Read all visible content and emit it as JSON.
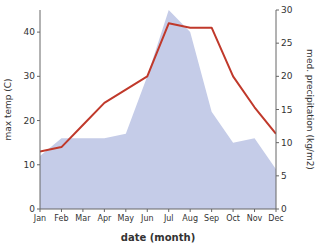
{
  "chart_data": {
    "type": "line",
    "categories": [
      "Jan",
      "Feb",
      "Mar",
      "Apr",
      "May",
      "Jun",
      "Jul",
      "Aug",
      "Sep",
      "Oct",
      "Nov",
      "Dec"
    ],
    "series": [
      {
        "type": "area",
        "color": "#c5cce8",
        "values": [
          12,
          16,
          16,
          16,
          17,
          30,
          45,
          40,
          22,
          15,
          16,
          9
        ]
      },
      {
        "type": "line",
        "color": "#c0392b",
        "values": [
          13,
          14,
          19,
          24,
          27,
          30,
          42,
          41,
          41,
          30,
          23,
          17
        ]
      }
    ],
    "xlabel": "date (month)",
    "ylabel": "max temp (C)",
    "y2label": "med. precipitation (kg/m2)",
    "ylim": [
      0,
      45
    ],
    "yticks": [
      0,
      10,
      20,
      30,
      40
    ],
    "y2lim": [
      0,
      30
    ],
    "y2ticks": [
      0,
      5,
      10,
      15,
      20,
      25,
      30
    ],
    "grid": false
  }
}
